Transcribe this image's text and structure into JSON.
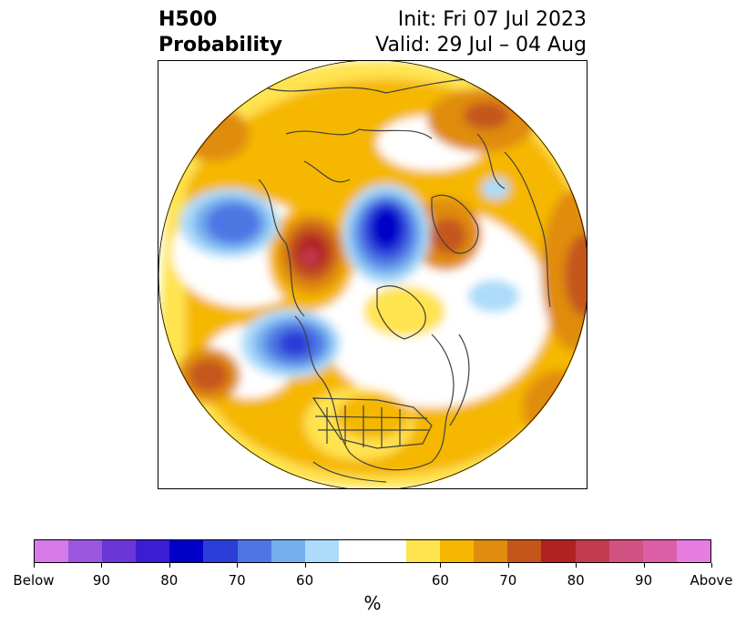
{
  "header": {
    "title_line1": "H500",
    "title_line2": "Probability",
    "init_text": "Init: Fri 07 Jul 2023",
    "valid_text": "Valid: 29 Jul – 04 Aug"
  },
  "colorbar": {
    "colors": [
      "#d77be8",
      "#9b57e0",
      "#6c35d8",
      "#3b1dd3",
      "#0000c8",
      "#2b3ed8",
      "#4d76e3",
      "#76afef",
      "#acdcf9",
      "#ffffff",
      "#ffffff",
      "#ffe34f",
      "#f5b700",
      "#e08c0e",
      "#c5561a",
      "#b12121",
      "#c23a4e",
      "#d15282",
      "#dd5fa8",
      "#e77ce0"
    ],
    "tick_labels": [
      "Below",
      "90",
      "80",
      "70",
      "60",
      "60",
      "70",
      "80",
      "90",
      "Above"
    ],
    "unit_label": "%"
  },
  "map": {
    "projection": "north-polar-stereographic",
    "background_color": "#ffffff",
    "land_outline_color": "#404040"
  }
}
